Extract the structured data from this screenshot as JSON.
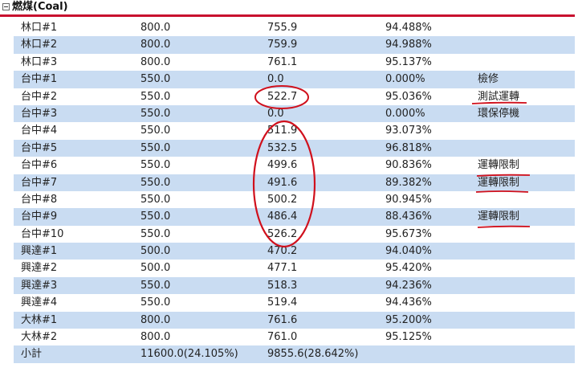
{
  "title": "燃煤(Coal)",
  "rows": [
    {
      "unit": "林口#1",
      "capacity": "800.0",
      "output": "755.9",
      "percent": "94.488%",
      "note": ""
    },
    {
      "unit": "林口#2",
      "capacity": "800.0",
      "output": "759.9",
      "percent": "94.988%",
      "note": ""
    },
    {
      "unit": "林口#3",
      "capacity": "800.0",
      "output": "761.1",
      "percent": "95.137%",
      "note": ""
    },
    {
      "unit": "台中#1",
      "capacity": "550.0",
      "output": "0.0",
      "percent": "0.000%",
      "note": "檢修"
    },
    {
      "unit": "台中#2",
      "capacity": "550.0",
      "output": "522.7",
      "percent": "95.036%",
      "note": "測試運轉"
    },
    {
      "unit": "台中#3",
      "capacity": "550.0",
      "output": "0.0",
      "percent": "0.000%",
      "note": "環保停機"
    },
    {
      "unit": "台中#4",
      "capacity": "550.0",
      "output": "511.9",
      "percent": "93.073%",
      "note": ""
    },
    {
      "unit": "台中#5",
      "capacity": "550.0",
      "output": "532.5",
      "percent": "96.818%",
      "note": ""
    },
    {
      "unit": "台中#6",
      "capacity": "550.0",
      "output": "499.6",
      "percent": "90.836%",
      "note": "運轉限制"
    },
    {
      "unit": "台中#7",
      "capacity": "550.0",
      "output": "491.6",
      "percent": "89.382%",
      "note": "運轉限制"
    },
    {
      "unit": "台中#8",
      "capacity": "550.0",
      "output": "500.2",
      "percent": "90.945%",
      "note": ""
    },
    {
      "unit": "台中#9",
      "capacity": "550.0",
      "output": "486.4",
      "percent": "88.436%",
      "note": "運轉限制"
    },
    {
      "unit": "台中#10",
      "capacity": "550.0",
      "output": "526.2",
      "percent": "95.673%",
      "note": ""
    },
    {
      "unit": "興達#1",
      "capacity": "500.0",
      "output": "470.2",
      "percent": "94.040%",
      "note": ""
    },
    {
      "unit": "興達#2",
      "capacity": "500.0",
      "output": "477.1",
      "percent": "95.420%",
      "note": ""
    },
    {
      "unit": "興達#3",
      "capacity": "550.0",
      "output": "518.3",
      "percent": "94.236%",
      "note": ""
    },
    {
      "unit": "興達#4",
      "capacity": "550.0",
      "output": "519.4",
      "percent": "94.436%",
      "note": ""
    },
    {
      "unit": "大林#1",
      "capacity": "800.0",
      "output": "761.6",
      "percent": "95.200%",
      "note": ""
    },
    {
      "unit": "大林#2",
      "capacity": "800.0",
      "output": "761.0",
      "percent": "95.125%",
      "note": ""
    }
  ],
  "subtotal": {
    "label": "小計",
    "capacity": "11600.0(24.105%)",
    "output": "9855.6(28.642%)"
  },
  "colors": {
    "accent_rule": "#c8102e",
    "row_alt": "#c9dcf2",
    "annotation": "#d0101c"
  }
}
